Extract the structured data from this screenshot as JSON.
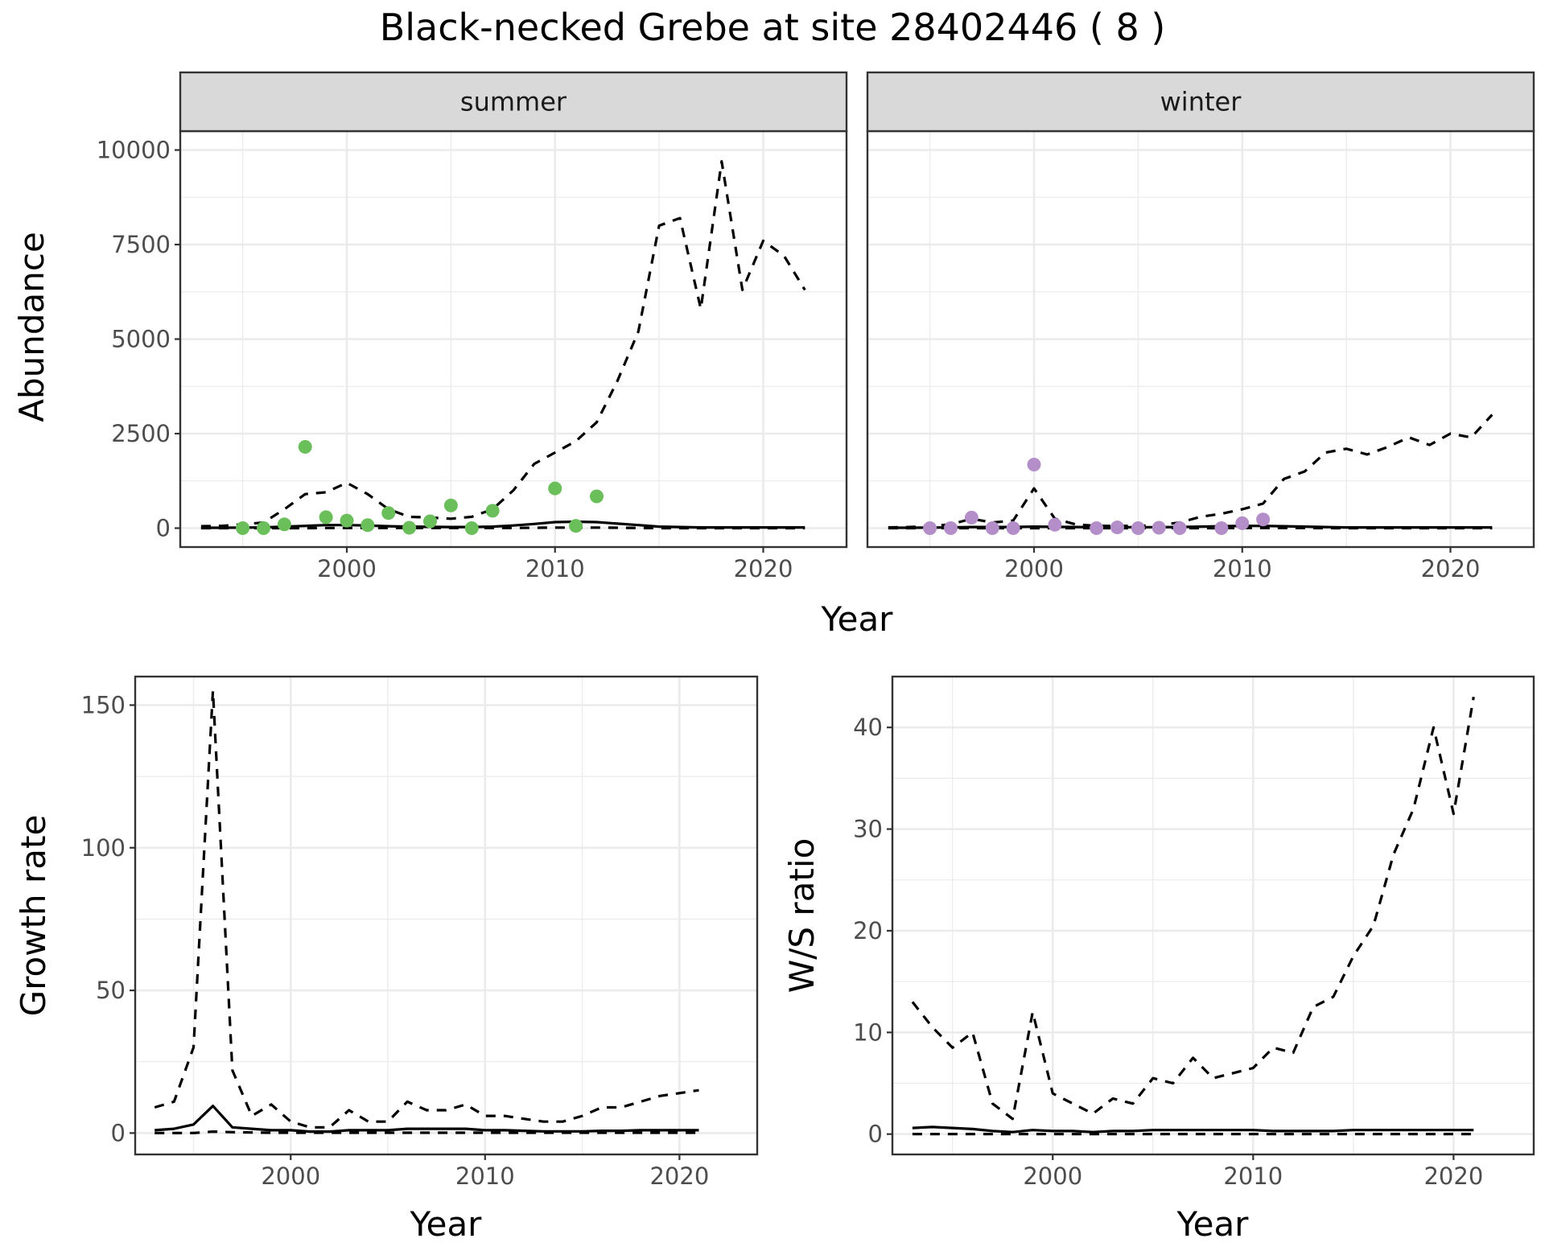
{
  "title": "Black-necked Grebe at site 28402446 ( 8 )",
  "colors": {
    "summer_points": "#6abf5b",
    "winter_points": "#b48ec9",
    "lines": "#000000",
    "strip_fill": "#d9d9d9",
    "grid": "#ebebeb"
  },
  "chart_data": [
    {
      "type": "line",
      "panel": "summer",
      "strip_label": "summer",
      "xlabel": "Year",
      "ylabel": "Abundance",
      "xlim": [
        1992,
        2024
      ],
      "ylim": [
        -500,
        10500
      ],
      "x_ticks": [
        2000,
        2010,
        2020
      ],
      "y_ticks": [
        0,
        2500,
        5000,
        7500,
        10000
      ],
      "grid": true,
      "series": [
        {
          "role": "upper",
          "style": "dashed",
          "x": [
            1993,
            1994,
            1995,
            1996,
            1997,
            1998,
            1999,
            2000,
            2001,
            2002,
            2003,
            2004,
            2005,
            2006,
            2007,
            2008,
            2009,
            2010,
            2011,
            2012,
            2013,
            2014,
            2015,
            2016,
            2017,
            2018,
            2019,
            2020,
            2021,
            2022
          ],
          "y": [
            50,
            60,
            100,
            150,
            500,
            900,
            950,
            1200,
            900,
            500,
            300,
            280,
            250,
            300,
            500,
            1000,
            1700,
            2000,
            2300,
            2800,
            3900,
            5200,
            8000,
            8200,
            5800,
            9700,
            6300,
            7600,
            7200,
            6300
          ]
        },
        {
          "role": "mean",
          "style": "solid",
          "x": [
            1993,
            1994,
            1995,
            1996,
            1997,
            1998,
            1999,
            2000,
            2001,
            2002,
            2003,
            2004,
            2005,
            2006,
            2007,
            2008,
            2009,
            2010,
            2011,
            2012,
            2013,
            2014,
            2015,
            2016,
            2017,
            2018,
            2019,
            2020,
            2021,
            2022
          ],
          "y": [
            10,
            10,
            15,
            20,
            40,
            60,
            80,
            80,
            70,
            50,
            40,
            35,
            30,
            30,
            40,
            70,
            110,
            160,
            170,
            160,
            120,
            80,
            40,
            30,
            20,
            20,
            20,
            20,
            20,
            20
          ]
        },
        {
          "role": "lower",
          "style": "dashed",
          "x": [
            1993,
            1994,
            1995,
            1996,
            1997,
            1998,
            1999,
            2000,
            2001,
            2002,
            2003,
            2004,
            2005,
            2006,
            2007,
            2008,
            2009,
            2010,
            2011,
            2012,
            2013,
            2014,
            2015,
            2016,
            2017,
            2018,
            2019,
            2020,
            2021,
            2022
          ],
          "y": [
            0,
            0,
            0,
            0,
            0,
            0,
            5,
            5,
            5,
            5,
            5,
            5,
            5,
            5,
            5,
            5,
            10,
            15,
            15,
            15,
            10,
            5,
            0,
            0,
            0,
            0,
            0,
            0,
            0,
            0
          ]
        },
        {
          "role": "observed",
          "style": "points",
          "x": [
            1995,
            1996,
            1997,
            1998,
            1999,
            2000,
            2001,
            2002,
            2003,
            2004,
            2005,
            2006,
            2007,
            2010,
            2011,
            2012
          ],
          "y": [
            0,
            0,
            100,
            2150,
            290,
            200,
            80,
            400,
            10,
            180,
            600,
            0,
            460,
            1050,
            60,
            840
          ]
        }
      ]
    },
    {
      "type": "line",
      "panel": "winter",
      "strip_label": "winter",
      "xlabel": "Year",
      "ylabel": "Abundance",
      "xlim": [
        1992,
        2024
      ],
      "ylim": [
        -500,
        10500
      ],
      "x_ticks": [
        2000,
        2010,
        2020
      ],
      "y_ticks": [
        0,
        2500,
        5000,
        7500,
        10000
      ],
      "grid": true,
      "series": [
        {
          "role": "upper",
          "style": "dashed",
          "x": [
            1993,
            1994,
            1995,
            1996,
            1997,
            1998,
            1999,
            2000,
            2001,
            2002,
            2003,
            2004,
            2005,
            2006,
            2007,
            2008,
            2009,
            2010,
            2011,
            2012,
            2013,
            2014,
            2015,
            2016,
            2017,
            2018,
            2019,
            2020,
            2021,
            2022
          ],
          "y": [
            20,
            30,
            50,
            100,
            250,
            150,
            200,
            1050,
            250,
            100,
            60,
            60,
            60,
            80,
            150,
            300,
            380,
            500,
            650,
            1300,
            1500,
            2000,
            2100,
            1950,
            2150,
            2400,
            2200,
            2500,
            2400,
            3000
          ]
        },
        {
          "role": "mean",
          "style": "solid",
          "x": [
            1993,
            1994,
            1995,
            1996,
            1997,
            1998,
            1999,
            2000,
            2001,
            2002,
            2003,
            2004,
            2005,
            2006,
            2007,
            2008,
            2009,
            2010,
            2011,
            2012,
            2013,
            2014,
            2015,
            2016,
            2017,
            2018,
            2019,
            2020,
            2021,
            2022
          ],
          "y": [
            10,
            10,
            15,
            20,
            30,
            30,
            30,
            40,
            35,
            30,
            25,
            25,
            25,
            25,
            30,
            40,
            50,
            60,
            60,
            50,
            40,
            30,
            20,
            20,
            20,
            20,
            20,
            20,
            20,
            20
          ]
        },
        {
          "role": "lower",
          "style": "dashed",
          "x": [
            1993,
            1994,
            1995,
            1996,
            1997,
            1998,
            1999,
            2000,
            2001,
            2002,
            2003,
            2004,
            2005,
            2006,
            2007,
            2008,
            2009,
            2010,
            2011,
            2012,
            2013,
            2014,
            2015,
            2016,
            2017,
            2018,
            2019,
            2020,
            2021,
            2022
          ],
          "y": [
            0,
            0,
            0,
            0,
            0,
            0,
            0,
            0,
            0,
            0,
            0,
            0,
            0,
            0,
            0,
            0,
            0,
            5,
            5,
            5,
            5,
            0,
            0,
            0,
            0,
            0,
            0,
            0,
            0,
            0
          ]
        },
        {
          "role": "observed",
          "style": "points",
          "x": [
            1995,
            1996,
            1997,
            1998,
            1999,
            2000,
            2001,
            2003,
            2004,
            2005,
            2006,
            2007,
            2009,
            2010,
            2011
          ],
          "y": [
            0,
            0,
            280,
            0,
            0,
            1680,
            90,
            0,
            20,
            0,
            10,
            0,
            0,
            130,
            230
          ]
        }
      ]
    },
    {
      "type": "line",
      "panel": "growth",
      "xlabel": "Year",
      "ylabel": "Growth rate",
      "xlim": [
        1992,
        2024
      ],
      "ylim": [
        -7.5,
        160
      ],
      "x_ticks": [
        2000,
        2010,
        2020
      ],
      "y_ticks": [
        0,
        50,
        100,
        150
      ],
      "grid": true,
      "series": [
        {
          "role": "upper",
          "style": "dashed",
          "x": [
            1993,
            1994,
            1995,
            1996,
            1997,
            1998,
            1999,
            2000,
            2001,
            2002,
            2003,
            2004,
            2005,
            2006,
            2007,
            2008,
            2009,
            2010,
            2011,
            2012,
            2013,
            2014,
            2015,
            2016,
            2017,
            2018,
            2019,
            2020,
            2021
          ],
          "y": [
            9,
            11,
            30,
            155,
            22,
            6,
            10,
            4,
            2,
            2,
            8,
            4,
            4,
            11,
            8,
            8,
            10,
            6,
            6,
            5,
            4,
            4,
            6,
            9,
            9,
            11,
            13,
            14,
            15
          ]
        },
        {
          "role": "mean",
          "style": "solid",
          "x": [
            1993,
            1994,
            1995,
            1996,
            1997,
            1998,
            1999,
            2000,
            2001,
            2002,
            2003,
            2004,
            2005,
            2006,
            2007,
            2008,
            2009,
            2010,
            2011,
            2012,
            2013,
            2014,
            2015,
            2016,
            2017,
            2018,
            2019,
            2020,
            2021
          ],
          "y": [
            1,
            1.5,
            3,
            9.5,
            2,
            1.5,
            1,
            1,
            0.5,
            0.5,
            1,
            1,
            1,
            1.5,
            1.5,
            1.5,
            1.5,
            1,
            1,
            0.8,
            0.6,
            0.6,
            0.6,
            0.8,
            0.8,
            1,
            1,
            1,
            1
          ]
        },
        {
          "role": "lower",
          "style": "dashed",
          "x": [
            1993,
            1994,
            1995,
            1996,
            1997,
            1998,
            1999,
            2000,
            2001,
            2002,
            2003,
            2004,
            2005,
            2006,
            2007,
            2008,
            2009,
            2010,
            2011,
            2012,
            2013,
            2014,
            2015,
            2016,
            2017,
            2018,
            2019,
            2020,
            2021
          ],
          "y": [
            0,
            0,
            0,
            0.5,
            0.3,
            0.2,
            0.1,
            0.1,
            0.1,
            0.1,
            0.1,
            0.1,
            0.1,
            0.1,
            0.1,
            0.1,
            0.1,
            0.1,
            0.1,
            0.1,
            0.1,
            0.1,
            0.1,
            0.1,
            0.1,
            0.1,
            0.1,
            0.1,
            0.1
          ]
        }
      ]
    },
    {
      "type": "line",
      "panel": "ws_ratio",
      "xlabel": "Year",
      "ylabel": "W/S ratio",
      "xlim": [
        1992,
        2024
      ],
      "ylim": [
        -2,
        45
      ],
      "x_ticks": [
        2000,
        2010,
        2020
      ],
      "y_ticks": [
        0,
        10,
        20,
        30,
        40
      ],
      "grid": true,
      "series": [
        {
          "role": "upper",
          "style": "dashed",
          "x": [
            1993,
            1994,
            1995,
            1996,
            1997,
            1998,
            1999,
            2000,
            2001,
            2002,
            2003,
            2004,
            2005,
            2006,
            2007,
            2008,
            2009,
            2010,
            2011,
            2012,
            2013,
            2014,
            2015,
            2016,
            2017,
            2018,
            2019,
            2020,
            2021
          ],
          "y": [
            13,
            10.5,
            8.5,
            10,
            3,
            1.5,
            12,
            4,
            3,
            2,
            3.5,
            3,
            5.5,
            5,
            7.5,
            5.5,
            6,
            6.5,
            8.5,
            8,
            12.5,
            13.5,
            17.5,
            20.5,
            27.5,
            32,
            40,
            31.5,
            43
          ]
        },
        {
          "role": "mean",
          "style": "solid",
          "x": [
            1993,
            1994,
            1995,
            1996,
            1997,
            1998,
            1999,
            2000,
            2001,
            2002,
            2003,
            2004,
            2005,
            2006,
            2007,
            2008,
            2009,
            2010,
            2011,
            2012,
            2013,
            2014,
            2015,
            2016,
            2017,
            2018,
            2019,
            2020,
            2021
          ],
          "y": [
            0.6,
            0.7,
            0.6,
            0.5,
            0.3,
            0.2,
            0.4,
            0.3,
            0.3,
            0.2,
            0.3,
            0.3,
            0.4,
            0.4,
            0.4,
            0.4,
            0.4,
            0.4,
            0.3,
            0.3,
            0.3,
            0.3,
            0.4,
            0.4,
            0.4,
            0.4,
            0.4,
            0.4,
            0.4
          ]
        },
        {
          "role": "lower",
          "style": "dashed",
          "x": [
            1993,
            1994,
            1995,
            1996,
            1997,
            1998,
            1999,
            2000,
            2001,
            2002,
            2003,
            2004,
            2005,
            2006,
            2007,
            2008,
            2009,
            2010,
            2011,
            2012,
            2013,
            2014,
            2015,
            2016,
            2017,
            2018,
            2019,
            2020,
            2021
          ],
          "y": [
            0,
            0,
            0,
            0,
            0,
            0,
            0,
            0,
            0,
            0,
            0,
            0,
            0,
            0,
            0,
            0,
            0,
            0,
            0,
            0,
            0,
            0,
            0,
            0,
            0,
            0,
            0,
            0,
            0
          ]
        }
      ]
    }
  ]
}
